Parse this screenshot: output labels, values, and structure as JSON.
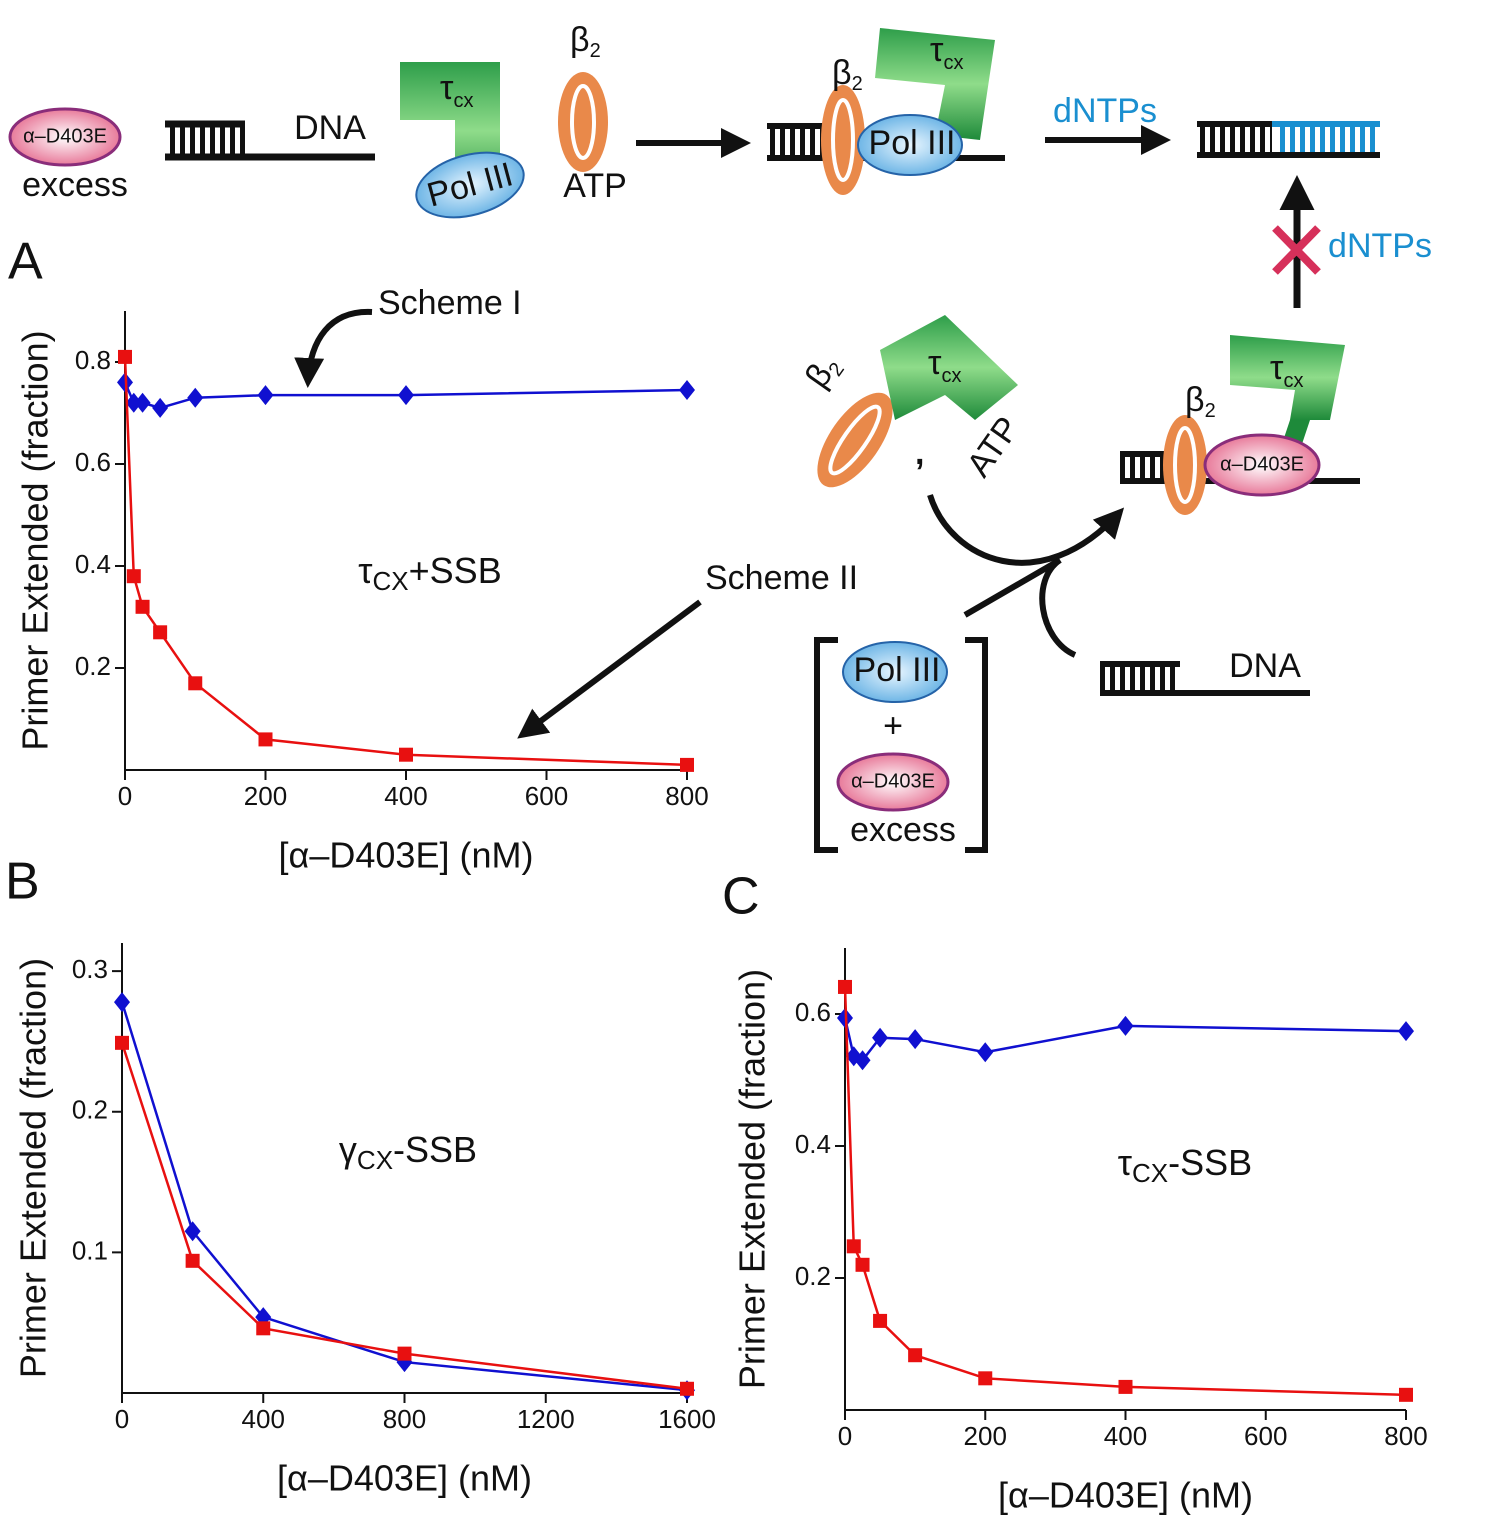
{
  "chart_data": [
    {
      "type": "line",
      "xlabel": "[α–D403E] (nM)",
      "ylabel": "Primer Extended (fraction)",
      "annotation": {
        "symbol": "τ",
        "sub": "CX",
        "rest": "+SSB"
      },
      "xlim": [
        0,
        800
      ],
      "xticks": [
        0,
        200,
        400,
        600,
        800
      ],
      "ylim": [
        0,
        0.9
      ],
      "yticks": [
        0.2,
        0.4,
        0.6,
        0.8
      ],
      "x": [
        0,
        12.5,
        25,
        50,
        100,
        200,
        400,
        800
      ],
      "series": [
        {
          "color": "#1010d0",
          "marker": "diamond",
          "values": [
            0.76,
            0.72,
            0.72,
            0.71,
            0.73,
            0.735,
            0.735,
            0.745
          ]
        },
        {
          "color": "#e81010",
          "marker": "square",
          "values": [
            0.81,
            0.38,
            0.32,
            0.27,
            0.17,
            0.06,
            0.03,
            0.01
          ]
        }
      ]
    },
    {
      "type": "line",
      "xlabel": "[α–D403E] (nM)",
      "ylabel": "Primer Extended (fraction)",
      "annotation": {
        "symbol": "γ",
        "sub": "CX",
        "rest": "-SSB"
      },
      "xlim": [
        0,
        1600
      ],
      "xticks": [
        0,
        400,
        800,
        1200,
        1600
      ],
      "ylim": [
        0,
        0.32
      ],
      "yticks": [
        0.1,
        0.2,
        0.3
      ],
      "x": [
        0,
        200,
        400,
        800,
        1600
      ],
      "series": [
        {
          "color": "#1010d0",
          "marker": "diamond",
          "values": [
            0.278,
            0.115,
            0.054,
            0.022,
            0.002
          ]
        },
        {
          "color": "#e81010",
          "marker": "square",
          "values": [
            0.249,
            0.094,
            0.046,
            0.028,
            0.003
          ]
        }
      ]
    },
    {
      "type": "line",
      "xlabel": "[α–D403E] (nM)",
      "ylabel": "Primer Extended (fraction)",
      "annotation": {
        "symbol": "τ",
        "sub": "CX",
        "rest": "-SSB"
      },
      "xlim": [
        0,
        800
      ],
      "xticks": [
        0,
        200,
        400,
        600,
        800
      ],
      "ylim": [
        0,
        0.7
      ],
      "yticks": [
        0.2,
        0.4,
        0.6
      ],
      "x": [
        0,
        12.5,
        25,
        50,
        100,
        200,
        400,
        800
      ],
      "series": [
        {
          "color": "#1010d0",
          "marker": "diamond",
          "values": [
            0.594,
            0.536,
            0.53,
            0.564,
            0.562,
            0.542,
            0.582,
            0.574
          ]
        },
        {
          "color": "#e81010",
          "marker": "square",
          "values": [
            0.641,
            0.248,
            0.22,
            0.135,
            0.083,
            0.048,
            0.035,
            0.023
          ]
        }
      ]
    }
  ],
  "diagram": {
    "panel_labels": [
      "A",
      "B",
      "C"
    ],
    "scheme_1": "Scheme I",
    "scheme_2": "Scheme II",
    "mutant": "α–D403E",
    "excess": "excess",
    "dna": "DNA",
    "tau": "τ",
    "cx": "cx",
    "pol": "Pol III",
    "beta": "β",
    "two": "2",
    "atp": "ATP",
    "dntps": "dNTPs",
    "plus": "+"
  }
}
